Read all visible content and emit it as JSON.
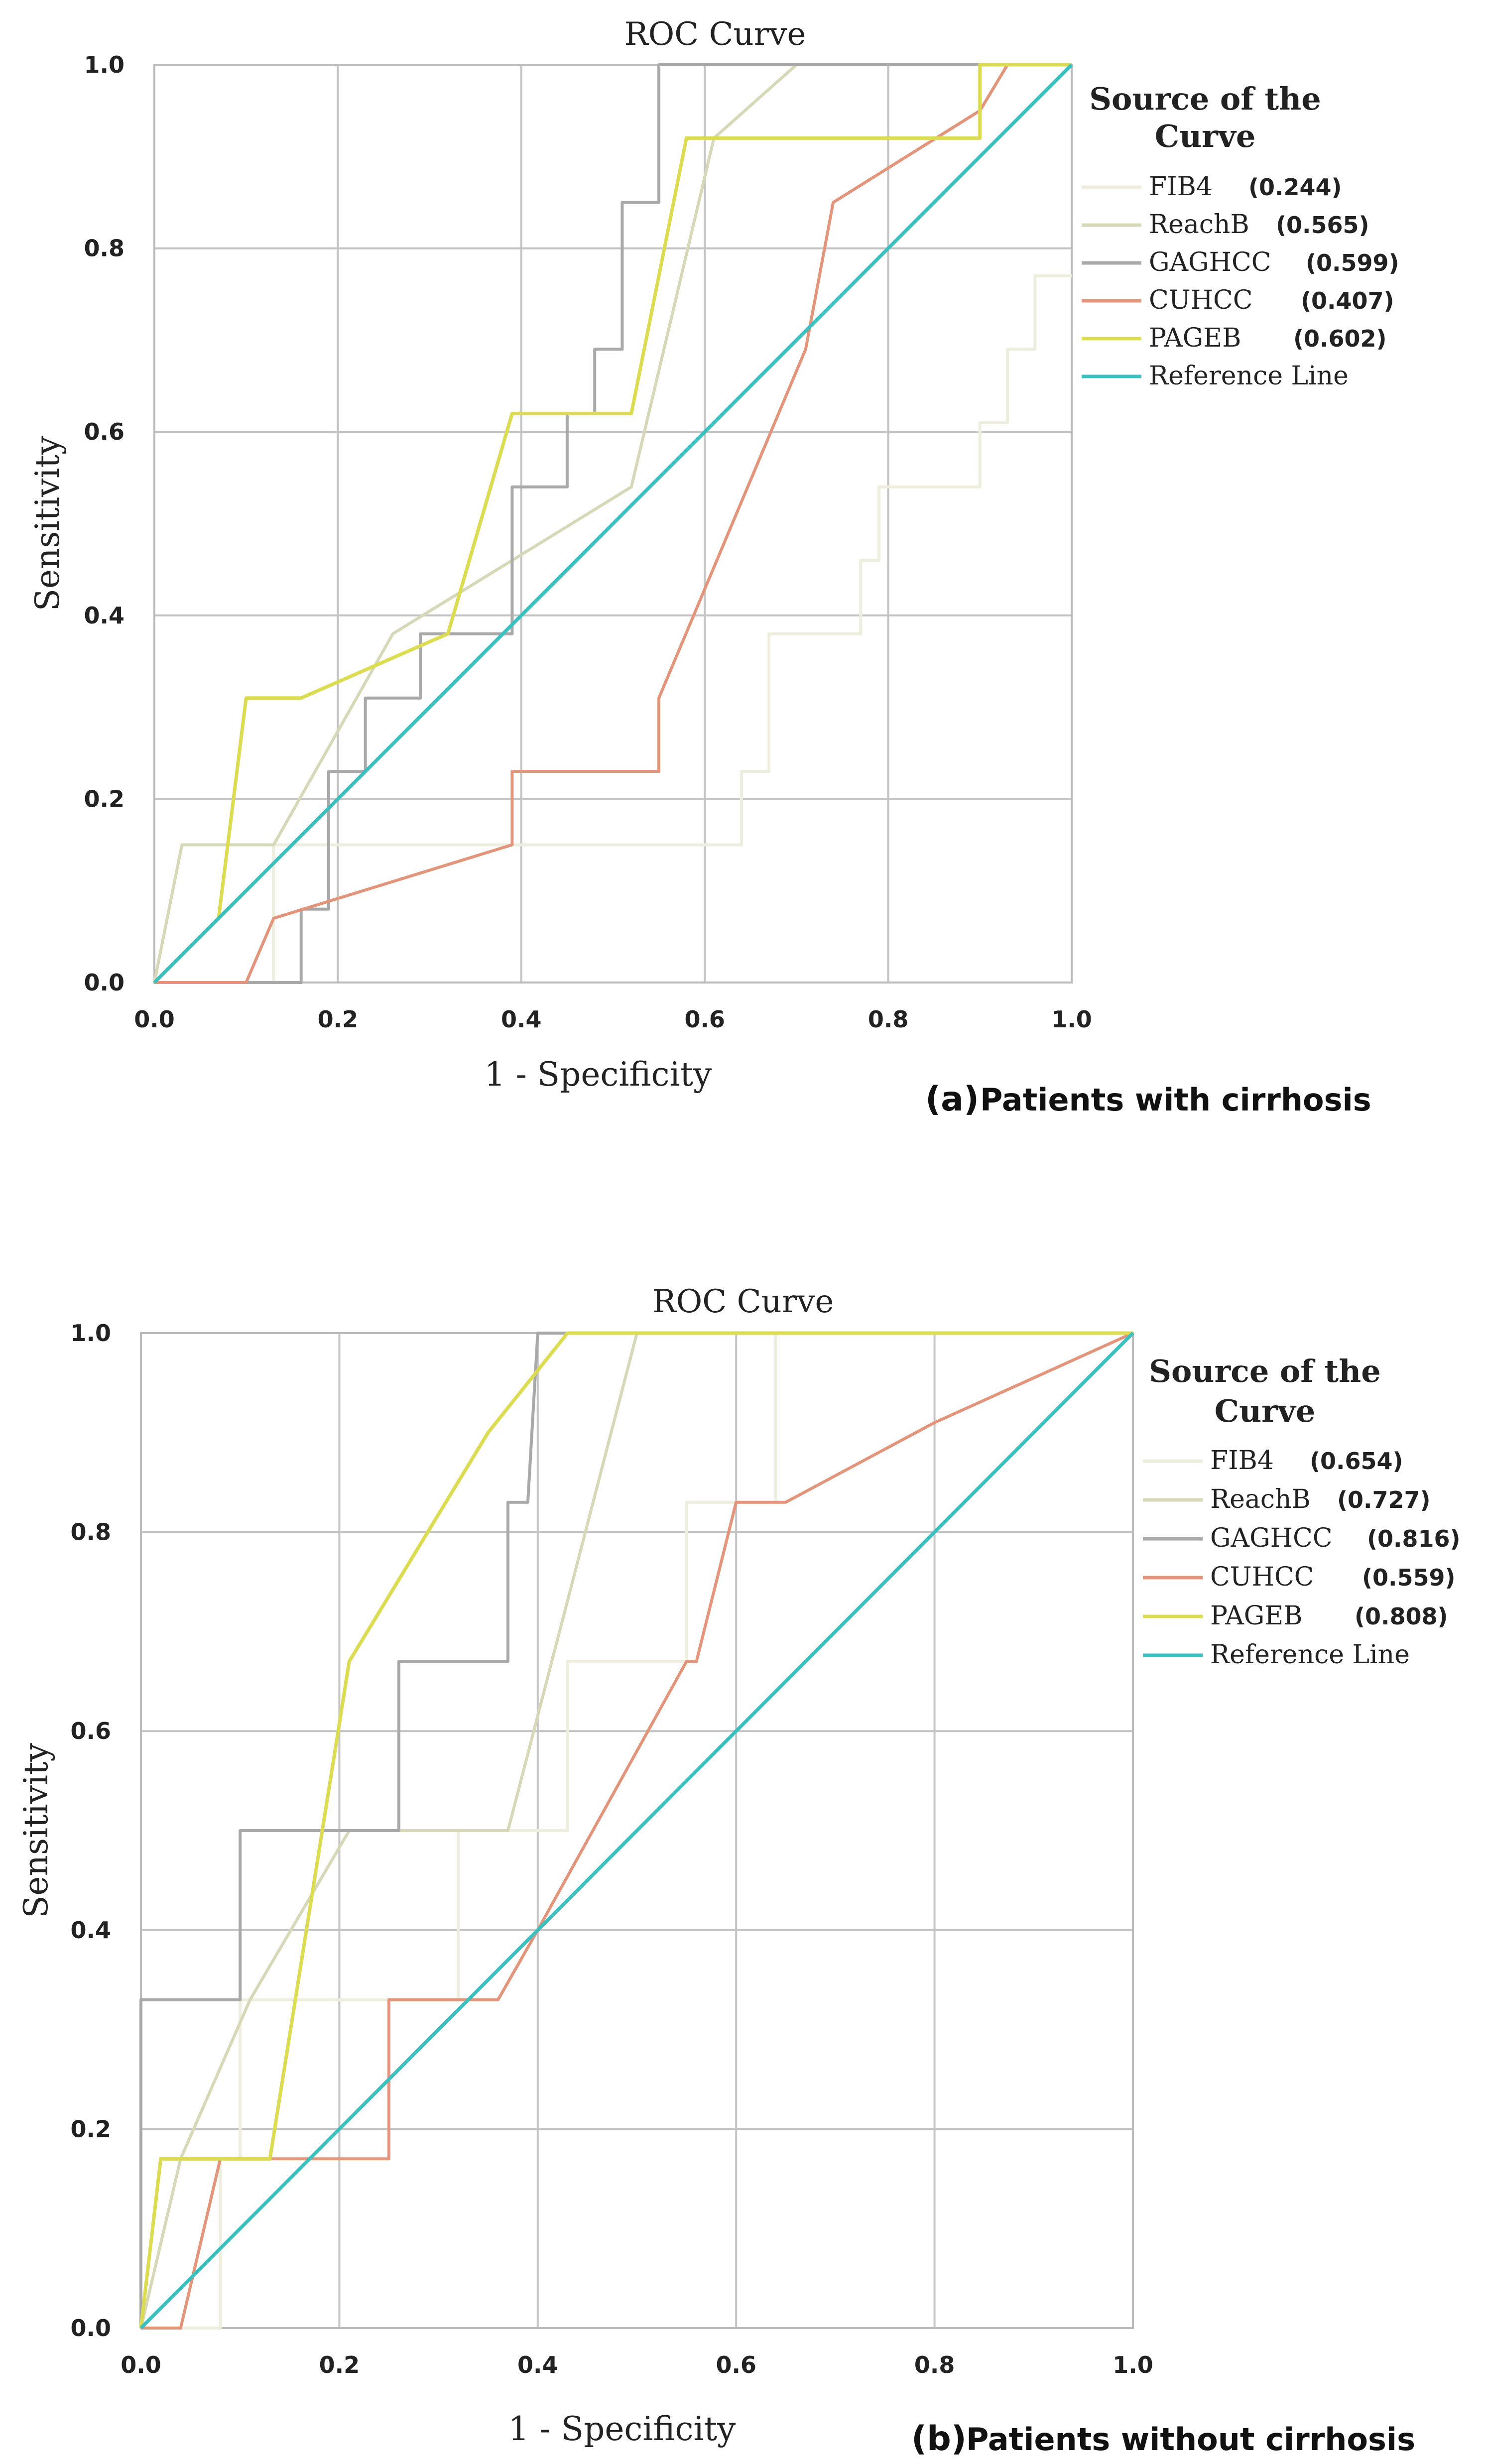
{
  "chart_data": [
    {
      "type": "line",
      "title": "ROC Curve",
      "xlabel": "1 - Specificity",
      "ylabel": "Sensitivity",
      "xlim": [
        0,
        1
      ],
      "ylim": [
        0,
        1
      ],
      "x_tick_labels": [
        "0.0",
        "0.2",
        "0.4",
        "0.6",
        "0.8",
        "1.0"
      ],
      "y_tick_labels": [
        "0.0",
        "0.2",
        "0.4",
        "0.6",
        "0.8",
        "1.0"
      ],
      "grid": true,
      "legend_title": "Source of the Curve",
      "legend_title_lines": [
        "Source of the",
        "Curve"
      ],
      "caption_letter": "(a)",
      "caption": "Patients with cirrhosis",
      "series": [
        {
          "name": "FIB4",
          "auc": "(0.244)",
          "color": "#eeeede",
          "points": [
            [
              0,
              0
            ],
            [
              0.13,
              0
            ],
            [
              0.13,
              0.15
            ],
            [
              0.64,
              0.15
            ],
            [
              0.64,
              0.23
            ],
            [
              0.67,
              0.23
            ],
            [
              0.67,
              0.38
            ],
            [
              0.77,
              0.38
            ],
            [
              0.77,
              0.46
            ],
            [
              0.79,
              0.46
            ],
            [
              0.79,
              0.54
            ],
            [
              0.9,
              0.54
            ],
            [
              0.9,
              0.61
            ],
            [
              0.93,
              0.61
            ],
            [
              0.93,
              0.69
            ],
            [
              0.96,
              0.69
            ],
            [
              0.96,
              0.77
            ],
            [
              1,
              0.77
            ]
          ]
        },
        {
          "name": "ReachB",
          "auc": "(0.565)",
          "color": "#d6d8b8",
          "points": [
            [
              0,
              0
            ],
            [
              0.03,
              0.15
            ],
            [
              0.13,
              0.15
            ],
            [
              0.26,
              0.38
            ],
            [
              0.52,
              0.54
            ],
            [
              0.61,
              0.92
            ],
            [
              0.7,
              1
            ],
            [
              1,
              1
            ]
          ]
        },
        {
          "name": "GAGHCC",
          "auc": "(0.599)",
          "color": "#a9a9a9",
          "points": [
            [
              0,
              0
            ],
            [
              0.16,
              0
            ],
            [
              0.16,
              0.08
            ],
            [
              0.19,
              0.08
            ],
            [
              0.19,
              0.23
            ],
            [
              0.23,
              0.23
            ],
            [
              0.23,
              0.31
            ],
            [
              0.29,
              0.31
            ],
            [
              0.29,
              0.38
            ],
            [
              0.39,
              0.38
            ],
            [
              0.39,
              0.54
            ],
            [
              0.45,
              0.54
            ],
            [
              0.45,
              0.62
            ],
            [
              0.48,
              0.62
            ],
            [
              0.48,
              0.69
            ],
            [
              0.51,
              0.69
            ],
            [
              0.51,
              0.85
            ],
            [
              0.55,
              0.85
            ],
            [
              0.55,
              1
            ],
            [
              1,
              1
            ]
          ]
        },
        {
          "name": "CUHCC",
          "auc": "(0.407)",
          "color": "#e2957a",
          "points": [
            [
              0,
              0
            ],
            [
              0.1,
              0
            ],
            [
              0.13,
              0.07
            ],
            [
              0.39,
              0.15
            ],
            [
              0.39,
              0.23
            ],
            [
              0.55,
              0.23
            ],
            [
              0.55,
              0.31
            ],
            [
              0.71,
              0.69
            ],
            [
              0.74,
              0.85
            ],
            [
              0.9,
              0.95
            ],
            [
              0.93,
              1
            ],
            [
              1,
              1
            ]
          ]
        },
        {
          "name": "PAGEB",
          "auc": "(0.602)",
          "color": "#dcdc52",
          "points": [
            [
              0,
              0
            ],
            [
              0.07,
              0.07
            ],
            [
              0.1,
              0.31
            ],
            [
              0.16,
              0.31
            ],
            [
              0.32,
              0.38
            ],
            [
              0.39,
              0.62
            ],
            [
              0.52,
              0.62
            ],
            [
              0.58,
              0.92
            ],
            [
              0.9,
              0.92
            ],
            [
              0.9,
              1
            ],
            [
              1,
              1
            ]
          ]
        },
        {
          "name": "Reference Line",
          "auc": "",
          "color": "#3bbfbf",
          "points": [
            [
              0,
              0
            ],
            [
              1,
              1
            ]
          ]
        }
      ]
    },
    {
      "type": "line",
      "title": "ROC Curve",
      "xlabel": "1 - Specificity",
      "ylabel": "Sensitivity",
      "xlim": [
        0,
        1
      ],
      "ylim": [
        0,
        1
      ],
      "x_tick_labels": [
        "0.0",
        "0.2",
        "0.4",
        "0.6",
        "0.8",
        "1.0"
      ],
      "y_tick_labels": [
        "0.0",
        "0.2",
        "0.4",
        "0.6",
        "0.8",
        "1.0"
      ],
      "grid": true,
      "legend_title": "Source of the Curve",
      "legend_title_lines": [
        "Source of the",
        "Curve"
      ],
      "caption_letter": "(b)",
      "caption": "Patients without cirrhosis",
      "series": [
        {
          "name": "FIB4",
          "auc": "(0.654)",
          "color": "#eeeede",
          "points": [
            [
              0,
              0
            ],
            [
              0.08,
              0
            ],
            [
              0.08,
              0.17
            ],
            [
              0.1,
              0.17
            ],
            [
              0.1,
              0.33
            ],
            [
              0.32,
              0.33
            ],
            [
              0.32,
              0.5
            ],
            [
              0.43,
              0.5
            ],
            [
              0.43,
              0.67
            ],
            [
              0.55,
              0.67
            ],
            [
              0.55,
              0.83
            ],
            [
              0.64,
              0.83
            ],
            [
              0.64,
              1
            ],
            [
              1,
              1
            ]
          ]
        },
        {
          "name": "ReachB",
          "auc": "(0.727)",
          "color": "#d6d8b8",
          "points": [
            [
              0,
              0
            ],
            [
              0.04,
              0.17
            ],
            [
              0.11,
              0.33
            ],
            [
              0.21,
              0.5
            ],
            [
              0.37,
              0.5
            ],
            [
              0.5,
              1
            ],
            [
              1,
              1
            ]
          ]
        },
        {
          "name": "GAGHCC",
          "auc": "(0.816)",
          "color": "#a9a9a9",
          "points": [
            [
              0,
              0
            ],
            [
              0,
              0.33
            ],
            [
              0.1,
              0.33
            ],
            [
              0.1,
              0.5
            ],
            [
              0.26,
              0.5
            ],
            [
              0.26,
              0.67
            ],
            [
              0.37,
              0.67
            ],
            [
              0.37,
              0.83
            ],
            [
              0.39,
              0.83
            ],
            [
              0.4,
              1
            ],
            [
              1,
              1
            ]
          ]
        },
        {
          "name": "CUHCC",
          "auc": "(0.559)",
          "color": "#e2957a",
          "points": [
            [
              0,
              0
            ],
            [
              0.04,
              0
            ],
            [
              0.08,
              0.17
            ],
            [
              0.25,
              0.17
            ],
            [
              0.25,
              0.33
            ],
            [
              0.36,
              0.33
            ],
            [
              0.4,
              0.4
            ],
            [
              0.55,
              0.67
            ],
            [
              0.56,
              0.67
            ],
            [
              0.6,
              0.83
            ],
            [
              0.65,
              0.83
            ],
            [
              0.8,
              0.91
            ],
            [
              1,
              1
            ]
          ]
        },
        {
          "name": "PAGEB",
          "auc": "(0.808)",
          "color": "#dcdc52",
          "points": [
            [
              0,
              0
            ],
            [
              0.02,
              0.17
            ],
            [
              0.13,
              0.17
            ],
            [
              0.21,
              0.67
            ],
            [
              0.35,
              0.9
            ],
            [
              0.43,
              1
            ],
            [
              1,
              1
            ]
          ]
        },
        {
          "name": "Reference Line",
          "auc": "",
          "color": "#3bbfbf",
          "points": [
            [
              0,
              0
            ],
            [
              1,
              1
            ]
          ]
        }
      ]
    }
  ]
}
